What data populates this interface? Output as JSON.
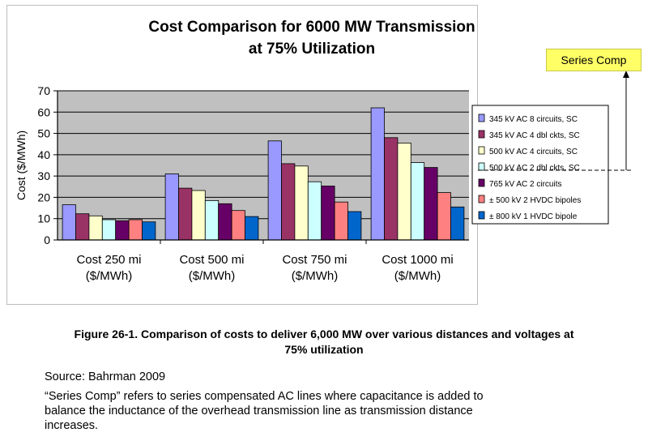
{
  "chart_data": {
    "type": "bar",
    "title_line1": "Cost Comparison for 6000 MW Transmission",
    "title_line2": "at 75% Utilization",
    "ylabel": "Cost ($/MWh)",
    "ylim": [
      0,
      70
    ],
    "yticks": [
      0,
      10,
      20,
      30,
      40,
      50,
      60,
      70
    ],
    "grid": true,
    "legend_position": "right",
    "categories": [
      [
        "Cost 250 mi",
        "($/MWh)"
      ],
      [
        "Cost 500 mi",
        "($/MWh)"
      ],
      [
        "Cost 750 mi",
        "($/MWh)"
      ],
      [
        "Cost 1000 mi",
        "($/MWh)"
      ]
    ],
    "series": [
      {
        "name": "345 kV AC 8 circuits, SC",
        "color": "#9999ff",
        "values": [
          16.5,
          31,
          46.5,
          62
        ]
      },
      {
        "name": "345 kV AC 4 dbl ckts, SC",
        "color": "#993366",
        "values": [
          12.3,
          24.3,
          35.8,
          48
        ]
      },
      {
        "name": "500 kV AC 4 circuits, SC",
        "color": "#ffffcc",
        "values": [
          11.3,
          23.2,
          34.7,
          45.5
        ]
      },
      {
        "name": "500 kV AC 2 dbl ckts, SC",
        "color": "#ccffff",
        "values": [
          9.5,
          18.5,
          27.3,
          36.3
        ]
      },
      {
        "name": "765 kV AC 2 circuits",
        "color": "#660066",
        "values": [
          9,
          17,
          25.3,
          34
        ]
      },
      {
        "name": "± 500 kV 2 HVDC bipoles",
        "color": "#ff8080",
        "values": [
          9.5,
          13.8,
          17.8,
          22.2
        ]
      },
      {
        "name": "± 800 kV 1 HVDC bipole",
        "color": "#0066cc",
        "values": [
          8.5,
          11,
          13.3,
          15.5
        ]
      }
    ]
  },
  "annotation": {
    "label": "Series Comp"
  },
  "figure_caption": {
    "line1": "Figure 26-1. Comparison of costs to deliver 6,000 MW over various distances and voltages at",
    "line2": "75% utilization"
  },
  "notes": {
    "source": "Source: Bahrman 2009",
    "line1": "“Series Comp” refers to series compensated AC lines where capacitance is added to",
    "line2": "balance the inductance of the overhead transmission line as transmission distance",
    "line3": "increases."
  }
}
